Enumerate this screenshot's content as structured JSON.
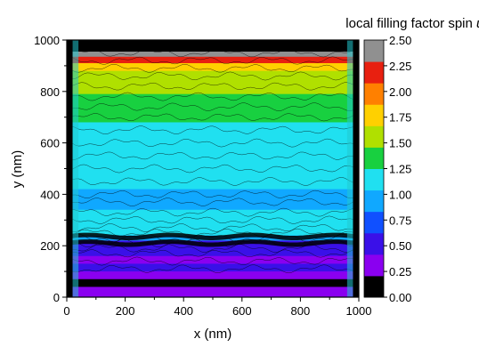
{
  "chart_data": {
    "type": "heatmap",
    "title_text": "local filling factor spin ",
    "title_italic": "up",
    "xlabel": "x (nm)",
    "ylabel": "y (nm)",
    "xlim": [
      0,
      1000
    ],
    "ylim": [
      0,
      1000
    ],
    "x_ticks": [
      0,
      200,
      400,
      600,
      800,
      1000
    ],
    "y_ticks": [
      0,
      200,
      400,
      600,
      800,
      1000
    ],
    "x_tick_labels": [
      "0",
      "200",
      "400",
      "600",
      "800",
      "1000"
    ],
    "y_tick_labels": [
      "0",
      "200",
      "400",
      "600",
      "800",
      "1000"
    ],
    "colorbar": {
      "range": [
        0,
        2.5
      ],
      "ticks": [
        0.0,
        0.25,
        0.5,
        0.75,
        1.0,
        1.25,
        1.5,
        1.75,
        2.0,
        2.25,
        2.5
      ],
      "tick_labels": [
        "0.00",
        "0.25",
        "0.50",
        "0.75",
        "1.00",
        "1.25",
        "1.50",
        "1.75",
        "2.00",
        "2.25",
        "2.50"
      ],
      "colors": [
        "#000000",
        "#8a00f0",
        "#3a10e8",
        "#1050ff",
        "#10a8ff",
        "#20e0f0",
        "#18d040",
        "#b0e000",
        "#ffd000",
        "#ff8000",
        "#e82010",
        "#909090"
      ]
    },
    "grid": false
  }
}
